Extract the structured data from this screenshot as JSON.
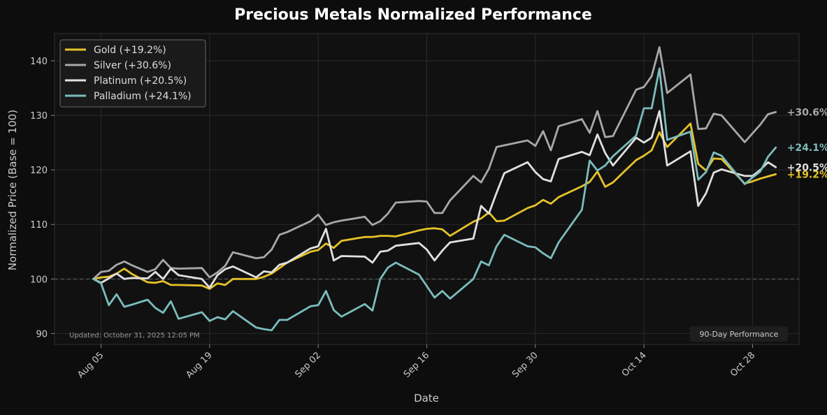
{
  "chart_data": {
    "type": "line",
    "title": "Precious Metals Normalized Performance",
    "xlabel": "Date",
    "ylabel": "Normalized Price (Base = 100)",
    "ylim": [
      88,
      145
    ],
    "yticks": [
      90,
      100,
      110,
      120,
      130,
      140
    ],
    "xlim": [
      -3,
      93
    ],
    "xticks": [
      {
        "day": 3,
        "label": "Aug 05"
      },
      {
        "day": 17,
        "label": "Aug 19"
      },
      {
        "day": 31,
        "label": "Sep 02"
      },
      {
        "day": 45,
        "label": "Sep 16"
      },
      {
        "day": 59,
        "label": "Sep 30"
      },
      {
        "day": 73,
        "label": "Oct 14"
      },
      {
        "day": 87,
        "label": "Oct 28"
      }
    ],
    "baseline": 100,
    "grid": true,
    "legend_position": "top-left",
    "footnote": "Updated: October 31, 2025 12:05 PM",
    "badge": "90-Day Performance",
    "colors": {
      "background": "#0d0d0d",
      "plot_background": "#111111",
      "grid": "#2a2a2a",
      "text": "#cccccc",
      "title": "#ffffff"
    },
    "x": [
      2,
      3,
      4,
      5,
      6,
      7,
      9,
      10,
      11,
      12,
      13,
      16,
      17,
      18,
      19,
      20,
      23,
      24,
      25,
      26,
      27,
      30,
      31,
      32,
      33,
      34,
      37,
      38,
      39,
      40,
      41,
      44,
      45,
      46,
      47,
      48,
      51,
      52,
      53,
      54,
      55,
      58,
      59,
      60,
      61,
      62,
      65,
      66,
      67,
      68,
      69,
      72,
      73,
      74,
      75,
      76,
      79,
      80,
      81,
      82,
      83,
      86,
      87,
      88,
      89,
      90
    ],
    "series": [
      {
        "name": "Gold (+19.2%)",
        "end_label": "+19.2%",
        "color": "#e6c229",
        "values": [
          100,
          100.3,
          100.4,
          101,
          101.9,
          100.9,
          99.4,
          99.3,
          99.6,
          98.9,
          98.9,
          98.8,
          98.2,
          99.2,
          98.9,
          100,
          100,
          100.4,
          101,
          102,
          103,
          105,
          105.3,
          106.5,
          105.7,
          107,
          107.7,
          107.7,
          107.9,
          107.9,
          107.8,
          108.9,
          109.2,
          109.3,
          109.1,
          107.9,
          110.5,
          111.1,
          112.2,
          110.6,
          110.7,
          113,
          113.5,
          114.5,
          113.8,
          115,
          117,
          117.8,
          119.7,
          116.9,
          117.7,
          121.8,
          122.6,
          123.6,
          126.9,
          124.2,
          128.5,
          121.1,
          119.9,
          122.1,
          122,
          117.5,
          117.9,
          118.4,
          118.8,
          119.2
        ]
      },
      {
        "name": "Silver (+30.6%)",
        "end_label": "+30.6%",
        "color": "#a8a8a8",
        "values": [
          100,
          101.3,
          101.5,
          102.6,
          103.2,
          102.5,
          101.3,
          101.8,
          103.5,
          102,
          101.9,
          102,
          100.3,
          101.2,
          102.4,
          104.9,
          103.8,
          104,
          105.4,
          108.1,
          108.6,
          110.6,
          111.8,
          109.9,
          110.4,
          110.7,
          111.4,
          109.9,
          110.6,
          112,
          114,
          114.3,
          114.2,
          112.1,
          112.1,
          114.4,
          118.9,
          117.7,
          120.2,
          124.2,
          124.5,
          125.4,
          124.4,
          127.1,
          123.6,
          128,
          129.3,
          126.8,
          130.8,
          126,
          126.2,
          134.7,
          135.2,
          137.2,
          142.5,
          134.1,
          137.5,
          127.5,
          127.6,
          130.3,
          130,
          125.1,
          126.7,
          128.3,
          130.2,
          130.6
        ]
      },
      {
        "name": "Platinum (+20.5%)",
        "end_label": "+20.5%",
        "color": "#e0e0e0",
        "values": [
          100,
          99.3,
          100.1,
          101,
          100,
          100.2,
          100.1,
          101.3,
          100,
          101.9,
          100.7,
          100,
          98.4,
          100.7,
          101.8,
          102.3,
          100.3,
          101.4,
          101.2,
          102.6,
          103,
          105.6,
          106,
          109.2,
          103.4,
          104.2,
          104.1,
          103,
          105,
          105.2,
          106.1,
          106.6,
          105.4,
          103.4,
          105.2,
          106.7,
          107.4,
          113.4,
          112,
          115.8,
          119.4,
          121.4,
          119.6,
          118.3,
          117.9,
          122,
          123.3,
          122.7,
          126.5,
          123.1,
          120.8,
          125.9,
          125,
          125.9,
          130.8,
          120.8,
          123.4,
          113.4,
          115.7,
          119.5,
          120.1,
          118.9,
          118.9,
          120,
          121.4,
          120.5
        ]
      },
      {
        "name": "Palladium (+24.1%)",
        "end_label": "+24.1%",
        "color": "#7bbdbd",
        "values": [
          100,
          99.2,
          95.2,
          97.2,
          94.9,
          95.3,
          96.2,
          94.7,
          93.8,
          95.9,
          92.7,
          93.9,
          92.3,
          93,
          92.6,
          94.1,
          91.1,
          90.8,
          90.6,
          92.5,
          92.5,
          95,
          95.2,
          97.8,
          94.3,
          93.1,
          95.4,
          94.2,
          100,
          102.1,
          103,
          100.8,
          98.7,
          96.6,
          97.8,
          96.4,
          100,
          103.2,
          102.5,
          106,
          108.1,
          106,
          105.8,
          104.7,
          103.8,
          106.7,
          112.7,
          121.7,
          119.9,
          120.8,
          122.5,
          126.3,
          131.3,
          131.3,
          138.6,
          125.5,
          127,
          118.2,
          119.6,
          123.2,
          122.6,
          117.4,
          118.6,
          119.7,
          122.4,
          124.1
        ]
      }
    ]
  }
}
